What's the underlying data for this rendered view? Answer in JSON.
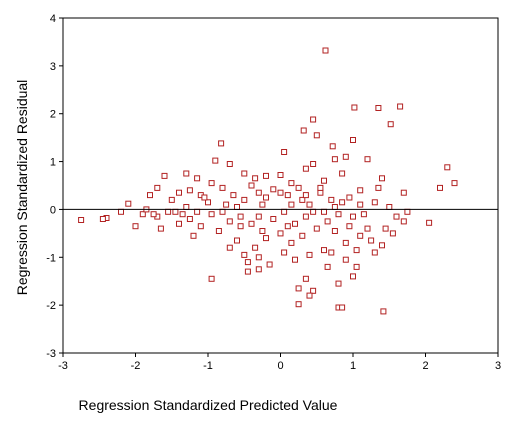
{
  "chart_data": {
    "type": "scatter",
    "xlabel": "Regression Standardized Predicted Value",
    "ylabel": "Regression Standardized Residual",
    "xlim": [
      -3,
      3
    ],
    "ylim": [
      -3,
      4
    ],
    "x_ticks": [
      "-3",
      "-2",
      "-1",
      "0",
      "1",
      "2",
      "3"
    ],
    "y_ticks": [
      "-3",
      "-2",
      "-1",
      "0",
      "1",
      "2",
      "3",
      "4"
    ],
    "reference_line_y": 0,
    "grid": false,
    "marker_color": "#b22222",
    "points": [
      [
        0.62,
        3.32
      ],
      [
        1.02,
        2.13
      ],
      [
        1.35,
        2.12
      ],
      [
        1.65,
        2.15
      ],
      [
        1.52,
        1.78
      ],
      [
        0.45,
        1.88
      ],
      [
        0.32,
        1.65
      ],
      [
        0.5,
        1.55
      ],
      [
        1.0,
        1.45
      ],
      [
        0.72,
        1.32
      ],
      [
        0.75,
        1.05
      ],
      [
        0.9,
        1.1
      ],
      [
        1.2,
        1.05
      ],
      [
        0.05,
        1.2
      ],
      [
        0.45,
        0.95
      ],
      [
        2.3,
        0.88
      ],
      [
        2.4,
        0.55
      ],
      [
        2.2,
        0.45
      ],
      [
        1.4,
        0.65
      ],
      [
        1.7,
        0.35
      ],
      [
        1.1,
        0.4
      ],
      [
        0.85,
        0.75
      ],
      [
        0.6,
        0.6
      ],
      [
        0.35,
        0.85
      ],
      [
        -0.82,
        1.38
      ],
      [
        -0.9,
        1.02
      ],
      [
        -0.7,
        0.95
      ],
      [
        -1.3,
        0.75
      ],
      [
        -1.15,
        0.65
      ],
      [
        -0.5,
        0.75
      ],
      [
        -0.35,
        0.65
      ],
      [
        -0.2,
        0.7
      ],
      [
        0.0,
        0.72
      ],
      [
        0.15,
        0.55
      ],
      [
        -1.6,
        0.7
      ],
      [
        -1.7,
        0.45
      ],
      [
        -1.8,
        0.3
      ],
      [
        -2.1,
        0.12
      ],
      [
        -1.5,
        0.2
      ],
      [
        -1.4,
        0.35
      ],
      [
        -1.25,
        0.4
      ],
      [
        -1.1,
        0.3
      ],
      [
        -1.0,
        0.15
      ],
      [
        -0.95,
        0.55
      ],
      [
        -0.8,
        0.45
      ],
      [
        -0.65,
        0.3
      ],
      [
        -0.5,
        0.2
      ],
      [
        -0.4,
        0.5
      ],
      [
        -0.3,
        0.35
      ],
      [
        -0.1,
        0.42
      ],
      [
        0.1,
        0.3
      ],
      [
        0.25,
        0.45
      ],
      [
        0.4,
        0.1
      ],
      [
        0.55,
        0.35
      ],
      [
        0.7,
        0.2
      ],
      [
        0.85,
        0.15
      ],
      [
        0.95,
        0.25
      ],
      [
        1.1,
        0.1
      ],
      [
        1.3,
        0.15
      ],
      [
        1.5,
        0.05
      ],
      [
        1.75,
        -0.05
      ],
      [
        -2.75,
        -0.22
      ],
      [
        -2.4,
        -0.18
      ],
      [
        -2.2,
        -0.05
      ],
      [
        -2.0,
        -0.35
      ],
      [
        -1.9,
        -0.1
      ],
      [
        -1.7,
        -0.15
      ],
      [
        -1.55,
        -0.05
      ],
      [
        -1.4,
        -0.3
      ],
      [
        -1.25,
        -0.2
      ],
      [
        -1.1,
        -0.35
      ],
      [
        -0.95,
        -0.1
      ],
      [
        -0.8,
        -0.05
      ],
      [
        -0.7,
        -0.25
      ],
      [
        -0.55,
        -0.15
      ],
      [
        -0.4,
        -0.3
      ],
      [
        -0.25,
        -0.45
      ],
      [
        -0.1,
        -0.2
      ],
      [
        0.05,
        -0.05
      ],
      [
        0.2,
        -0.3
      ],
      [
        0.35,
        -0.15
      ],
      [
        0.5,
        -0.4
      ],
      [
        0.65,
        -0.25
      ],
      [
        0.8,
        -0.1
      ],
      [
        0.95,
        -0.35
      ],
      [
        1.1,
        -0.55
      ],
      [
        1.25,
        -0.65
      ],
      [
        1.45,
        -0.4
      ],
      [
        1.6,
        -0.15
      ],
      [
        1.7,
        -0.25
      ],
      [
        -1.65,
        -0.4
      ],
      [
        -1.2,
        -0.55
      ],
      [
        -0.85,
        -0.45
      ],
      [
        -0.6,
        -0.65
      ],
      [
        -0.35,
        -0.8
      ],
      [
        -0.2,
        -0.6
      ],
      [
        0.0,
        -0.5
      ],
      [
        0.15,
        -0.7
      ],
      [
        0.3,
        -0.55
      ],
      [
        0.4,
        -0.95
      ],
      [
        0.6,
        -0.85
      ],
      [
        0.75,
        -0.45
      ],
      [
        0.9,
        -0.7
      ],
      [
        1.05,
        -0.85
      ],
      [
        1.2,
        -0.4
      ],
      [
        1.4,
        -0.75
      ],
      [
        1.55,
        -0.5
      ],
      [
        2.05,
        -0.28
      ],
      [
        -0.7,
        -0.8
      ],
      [
        -0.5,
        -0.95
      ],
      [
        -0.45,
        -1.1
      ],
      [
        -0.3,
        -1.0
      ],
      [
        -0.15,
        -1.15
      ],
      [
        0.05,
        -0.9
      ],
      [
        0.2,
        -1.05
      ],
      [
        -0.95,
        -1.45
      ],
      [
        -0.45,
        -1.3
      ],
      [
        -0.3,
        -1.25
      ],
      [
        0.35,
        -1.45
      ],
      [
        0.65,
        -1.2
      ],
      [
        0.9,
        -1.05
      ],
      [
        1.05,
        -1.2
      ],
      [
        1.3,
        -0.9
      ],
      [
        0.25,
        -1.65
      ],
      [
        0.45,
        -1.7
      ],
      [
        0.8,
        -1.55
      ],
      [
        1.0,
        -1.4
      ],
      [
        0.25,
        -1.98
      ],
      [
        0.4,
        -1.8
      ],
      [
        0.8,
        -2.05
      ],
      [
        0.85,
        -2.05
      ],
      [
        1.42,
        -2.13
      ],
      [
        0.7,
        -0.9
      ],
      [
        -1.85,
        0.0
      ],
      [
        -1.45,
        -0.05
      ],
      [
        -1.3,
        0.05
      ],
      [
        -0.6,
        0.05
      ],
      [
        0.45,
        -0.05
      ],
      [
        1.0,
        -0.15
      ],
      [
        -2.45,
        -0.2
      ],
      [
        -1.75,
        -0.1
      ],
      [
        -1.15,
        -0.05
      ],
      [
        -0.75,
        0.1
      ],
      [
        -0.25,
        0.1
      ],
      [
        0.15,
        0.1
      ],
      [
        0.3,
        0.2
      ],
      [
        0.6,
        -0.05
      ],
      [
        0.75,
        0.05
      ],
      [
        1.15,
        -0.1
      ],
      [
        1.35,
        0.45
      ],
      [
        -0.55,
        -0.35
      ],
      [
        -0.2,
        0.25
      ],
      [
        0.0,
        0.35
      ],
      [
        0.1,
        -0.35
      ],
      [
        0.55,
        0.45
      ],
      [
        -1.05,
        0.25
      ],
      [
        -0.3,
        -0.15
      ],
      [
        0.35,
        0.3
      ],
      [
        -1.35,
        -0.1
      ]
    ]
  }
}
